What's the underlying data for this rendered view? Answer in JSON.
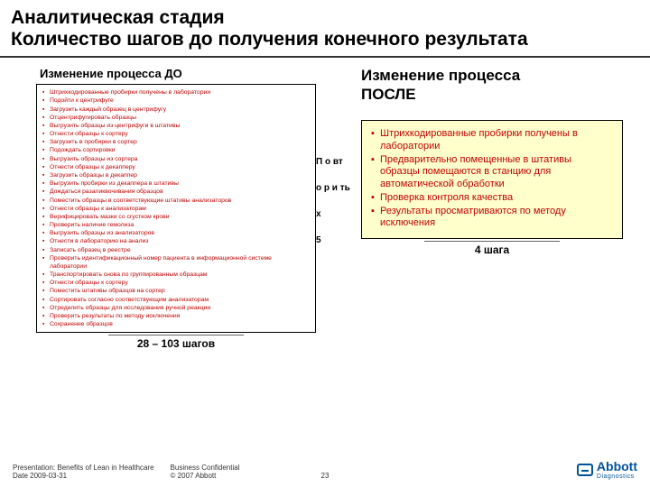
{
  "title_line1": "Аналитическая стадия",
  "title_line2": "Количество шагов до получения конечного результата",
  "before_heading": "Изменение процесса ДО",
  "after_heading_line1": "Изменение процесса",
  "after_heading_line2": "ПОСЛЕ",
  "before_steps": [
    "Штрихкодированные пробирки получены в лаборатории",
    "Подойти к центрифуге",
    "Загрузить каждый образец в центрифугу",
    "Отцентрифугировать образцы",
    "Выгрузить образцы из центрифуги в штативы",
    "Отнести образцы к сортеру",
    "Загрузить в пробирки в сортер",
    "Подождать сортировки",
    "Выгрузить образцы из сортера",
    "Отнести образцы к декапперу",
    "Загрузить образцы в декаппер",
    "Выгрузить пробирки из декаппера в штативы",
    "Дождаться разаликвочивания образцов",
    "Поместить образцы в соответствующие штативы анализаторов",
    "Отнести образцы к анализаторам",
    "Верифицировать мазки со сгустком крови",
    "Проверить наличие гемолиза",
    "Выгрузить образцы из анализаторов",
    "Отнести в лабораторию на анализ",
    "Записать образец в реестре",
    "Проверить идентификационный номер пациента в информационной системе лаборатории",
    "Транспортировать снова по группированным образцам",
    "Отнести образцы к сортеру",
    "Поместить штативы образцов на сортер",
    "Сортировать согласно соответствующим анализаторам",
    "Отределить образцы для исследования ручной реакции",
    "Проверить результаты по методу исключения",
    "Сохранение образцов"
  ],
  "before_summary": "28 – 103 шагов",
  "mid_labels": [
    "П о вт",
    "о р и ть",
    "х",
    "5"
  ],
  "after_steps": [
    "Штрихкодированные пробирки получены в лаборатории",
    "Предварительно помещенные в штативы образцы помещаются в станцию для автоматической обработки",
    "Проверка контроля качества",
    "Результаты просматриваются по методу исключения"
  ],
  "after_summary": "4 шага",
  "footer_left1": "Presentation: Benefits of Lean in Healthcare",
  "footer_left2": "Date 2009-03-31",
  "footer_mid1": "Business Confidential",
  "footer_mid2": "© 2007 Abbott",
  "page_num": "23",
  "logo_name": "Abbott",
  "logo_sub": "Diagnostics",
  "colors": {
    "accent": "#c00000",
    "highlight_bg": "#ffffcc",
    "logo": "#00529b"
  }
}
